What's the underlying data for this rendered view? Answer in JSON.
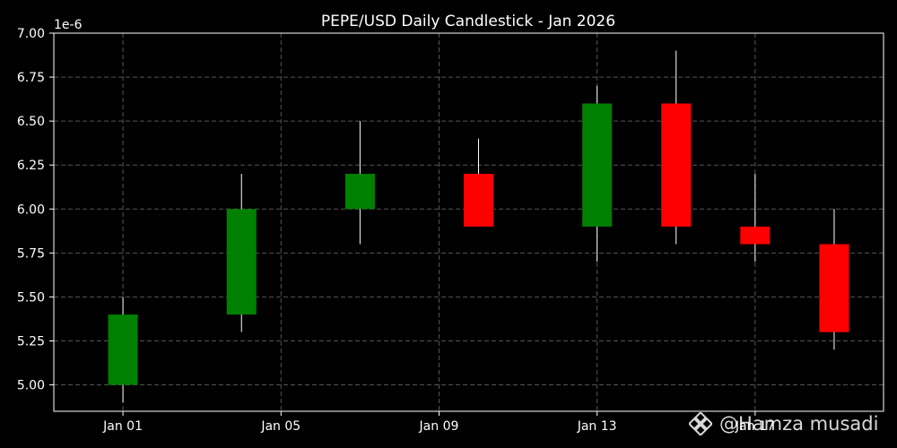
{
  "chart_data": {
    "type": "candlestick",
    "title": "PEPE/USD Daily Candlestick - Jan 2026",
    "xlabel": "",
    "ylabel": "",
    "y_offset_label": "1e-6",
    "ylim": [
      4.85,
      7.0
    ],
    "y_ticks": [
      "5.00",
      "5.25",
      "5.50",
      "5.75",
      "6.00",
      "6.25",
      "6.50",
      "6.75",
      "7.00"
    ],
    "y_tick_values": [
      5.0,
      5.25,
      5.5,
      5.75,
      6.0,
      6.25,
      6.5,
      6.75,
      7.0
    ],
    "x_ticks": [
      "Jan 01",
      "Jan 05",
      "Jan 09",
      "Jan 13",
      "Jan 17"
    ],
    "x_tick_days": [
      1,
      5,
      9,
      13,
      17
    ],
    "xlim_days": [
      -0.75,
      20.25
    ],
    "grid": true,
    "colors": {
      "background": "#000000",
      "up": "#008000",
      "down": "#ff0000",
      "wick": "#ffffff",
      "grid": "#555555",
      "axis": "#ffffff"
    },
    "candles": [
      {
        "date": "Jan 01",
        "day": 1,
        "open": 5.0,
        "high": 5.5,
        "low": 4.9,
        "close": 5.4
      },
      {
        "date": "Jan 04",
        "day": 4,
        "open": 5.4,
        "high": 6.2,
        "low": 5.3,
        "close": 6.0
      },
      {
        "date": "Jan 07",
        "day": 7,
        "open": 6.0,
        "high": 6.5,
        "low": 5.8,
        "close": 6.2
      },
      {
        "date": "Jan 10",
        "day": 10,
        "open": 6.2,
        "high": 6.4,
        "low": 5.9,
        "close": 5.9
      },
      {
        "date": "Jan 13",
        "day": 13,
        "open": 5.9,
        "high": 6.7,
        "low": 5.7,
        "close": 6.6
      },
      {
        "date": "Jan 15",
        "day": 15,
        "open": 6.6,
        "high": 6.9,
        "low": 5.8,
        "close": 5.9
      },
      {
        "date": "Jan 17",
        "day": 17,
        "open": 5.9,
        "high": 6.2,
        "low": 5.7,
        "close": 5.8
      },
      {
        "date": "Jan 19",
        "day": 19,
        "open": 5.8,
        "high": 6.0,
        "low": 5.2,
        "close": 5.3
      }
    ]
  },
  "watermark": {
    "text": "@Hamza musadi",
    "icon": "binance-diamond-icon"
  }
}
